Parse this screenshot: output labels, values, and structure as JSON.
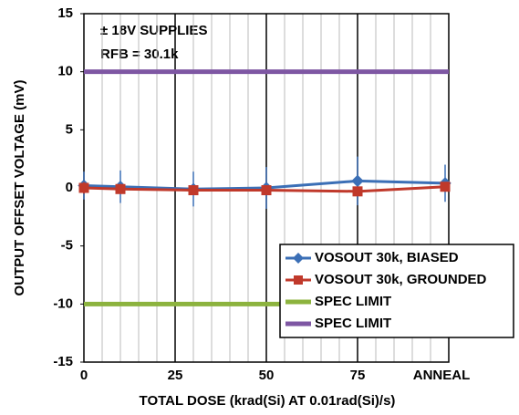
{
  "chart_data": {
    "type": "line",
    "x_label": "TOTAL DOSE (krad(Si) AT 0.01rad(Si)/s)",
    "y_label": "OUTPUT OFFSET VOLTAGE (mV)",
    "annotations": [
      "± 18V SUPPLIES",
      "RFB = 30.1k"
    ],
    "xlim": [
      0,
      100
    ],
    "xticks": [
      0,
      25,
      50,
      75,
      {
        "value": 99,
        "label": "ANNEAL"
      }
    ],
    "ylim": [
      -15,
      15
    ],
    "yticks": [
      -15,
      -10,
      -5,
      0,
      5,
      10,
      15
    ],
    "grid": true,
    "legend": "lower right",
    "series": [
      {
        "name": "VOSOUT 30k, BIASED",
        "color": "#3b6fb6",
        "marker": "diamond",
        "x": [
          0,
          10,
          30,
          50,
          75,
          99
        ],
        "values": [
          0.2,
          0.1,
          -0.1,
          0,
          0.6,
          0.4
        ],
        "errors": [
          1.2,
          1.4,
          1.5,
          1.8,
          2.1,
          1.6
        ]
      },
      {
        "name": "VOSOUT 30k, GROUNDED",
        "color": "#c0392b",
        "marker": "square",
        "x": [
          0,
          10,
          30,
          50,
          75,
          99
        ],
        "values": [
          0,
          -0.1,
          -0.2,
          -0.2,
          -0.3,
          0.1
        ],
        "errors": [
          0.5,
          0.4,
          0.3,
          0.3,
          0.3,
          0.4
        ]
      },
      {
        "name": "SPEC LIMIT",
        "color": "#8cb33e",
        "marker": "none",
        "x": [
          0,
          100
        ],
        "values": [
          -10,
          -10
        ]
      },
      {
        "name": "SPEC LIMIT",
        "color": "#7e57a3",
        "marker": "none",
        "x": [
          0,
          100
        ],
        "values": [
          10,
          10
        ]
      }
    ]
  }
}
